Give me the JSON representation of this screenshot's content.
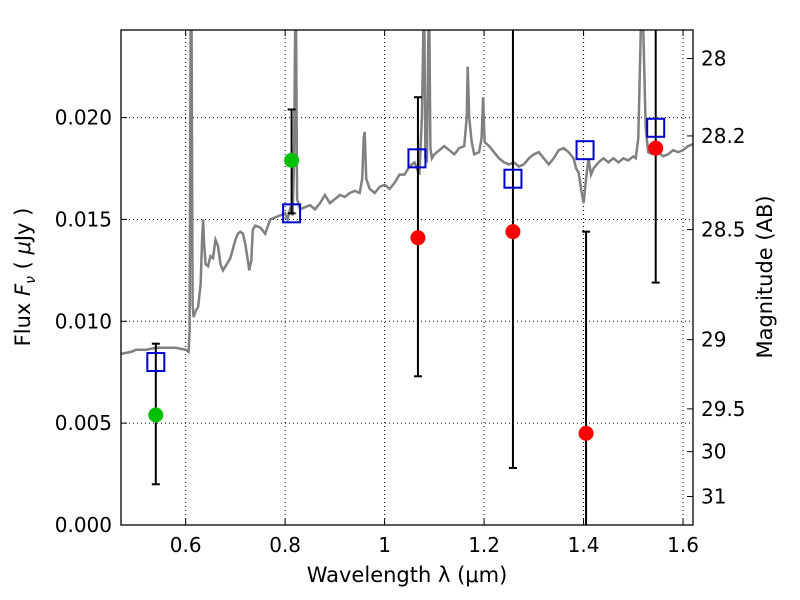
{
  "chart_data": {
    "type": "scatter",
    "xlabel": "Wavelength  λ (μm)",
    "ylabel": {
      "prefix": "Flux ",
      "symbol": "F",
      "subscript": "ν",
      "unit_open": " ( ",
      "unit_mu": "μ",
      "unit_rest": "Jy )"
    },
    "y2label": "Magnitude (AB)",
    "xlim": [
      0.47,
      1.62
    ],
    "ylim": [
      0.0,
      0.0243
    ],
    "grid": true,
    "xticks": [
      0.6,
      0.8,
      1.0,
      1.2,
      1.4,
      1.6
    ],
    "xtick_labels": [
      "0.6",
      "0.8",
      "1",
      "1.2",
      "1.4",
      "1.6"
    ],
    "yticks": [
      0.0,
      0.005,
      0.01,
      0.015,
      0.02
    ],
    "ytick_labels": [
      "0.000",
      "0.005",
      "0.010",
      "0.015",
      "0.020"
    ],
    "y2_ticks": [
      {
        "label": "28",
        "flux": 0.0229
      },
      {
        "label": "28.2",
        "flux": 0.0191
      },
      {
        "label": "28.5",
        "flux": 0.0145
      },
      {
        "label": "29",
        "flux": 0.0091
      },
      {
        "label": "29.5",
        "flux": 0.0057
      },
      {
        "label": "30",
        "flux": 0.0036
      },
      {
        "label": "31",
        "flux": 0.0014
      }
    ],
    "colors": {
      "spectrum": "#808080",
      "red": "#ff0000",
      "green": "#00c000",
      "model": "#0000cc",
      "errorbar": "#000000"
    },
    "spectrum": [
      [
        0.47,
        0.0084
      ],
      [
        0.49,
        0.0085
      ],
      [
        0.5,
        0.0086
      ],
      [
        0.52,
        0.0086
      ],
      [
        0.54,
        0.0087
      ],
      [
        0.56,
        0.0087
      ],
      [
        0.58,
        0.0087
      ],
      [
        0.6,
        0.0086
      ],
      [
        0.606,
        0.0085
      ],
      [
        0.608,
        0.0095
      ],
      [
        0.61,
        0.0243
      ],
      [
        0.612,
        0.0243
      ],
      [
        0.614,
        0.0108
      ],
      [
        0.616,
        0.0102
      ],
      [
        0.62,
        0.0105
      ],
      [
        0.625,
        0.0107
      ],
      [
        0.63,
        0.0118
      ],
      [
        0.633,
        0.014
      ],
      [
        0.635,
        0.015
      ],
      [
        0.637,
        0.0138
      ],
      [
        0.64,
        0.0128
      ],
      [
        0.645,
        0.0127
      ],
      [
        0.65,
        0.0132
      ],
      [
        0.655,
        0.0131
      ],
      [
        0.66,
        0.014
      ],
      [
        0.665,
        0.0137
      ],
      [
        0.67,
        0.0128
      ],
      [
        0.675,
        0.0125
      ],
      [
        0.68,
        0.0127
      ],
      [
        0.69,
        0.0131
      ],
      [
        0.7,
        0.014
      ],
      [
        0.705,
        0.0143
      ],
      [
        0.71,
        0.0144
      ],
      [
        0.715,
        0.0143
      ],
      [
        0.72,
        0.0138
      ],
      [
        0.725,
        0.013
      ],
      [
        0.728,
        0.0125
      ],
      [
        0.732,
        0.013
      ],
      [
        0.735,
        0.0145
      ],
      [
        0.74,
        0.0147
      ],
      [
        0.75,
        0.0146
      ],
      [
        0.76,
        0.0143
      ],
      [
        0.77,
        0.015
      ],
      [
        0.78,
        0.0151
      ],
      [
        0.79,
        0.0152
      ],
      [
        0.8,
        0.0153
      ],
      [
        0.805,
        0.015
      ],
      [
        0.81,
        0.0155
      ],
      [
        0.815,
        0.0152
      ],
      [
        0.818,
        0.018
      ],
      [
        0.82,
        0.0243
      ],
      [
        0.822,
        0.0243
      ],
      [
        0.824,
        0.016
      ],
      [
        0.83,
        0.0155
      ],
      [
        0.84,
        0.0156
      ],
      [
        0.85,
        0.0157
      ],
      [
        0.86,
        0.0155
      ],
      [
        0.87,
        0.0158
      ],
      [
        0.88,
        0.0162
      ],
      [
        0.89,
        0.0158
      ],
      [
        0.9,
        0.016
      ],
      [
        0.91,
        0.0162
      ],
      [
        0.92,
        0.0161
      ],
      [
        0.93,
        0.0163
      ],
      [
        0.94,
        0.0164
      ],
      [
        0.95,
        0.0163
      ],
      [
        0.955,
        0.017
      ],
      [
        0.958,
        0.019
      ],
      [
        0.96,
        0.0193
      ],
      [
        0.963,
        0.017
      ],
      [
        0.97,
        0.0165
      ],
      [
        0.98,
        0.0163
      ],
      [
        0.99,
        0.0166
      ],
      [
        1.0,
        0.0167
      ],
      [
        1.01,
        0.0165
      ],
      [
        1.02,
        0.0168
      ],
      [
        1.03,
        0.0172
      ],
      [
        1.04,
        0.0172
      ],
      [
        1.05,
        0.0176
      ],
      [
        1.06,
        0.0178
      ],
      [
        1.065,
        0.0175
      ],
      [
        1.07,
        0.0172
      ],
      [
        1.075,
        0.02
      ],
      [
        1.078,
        0.0243
      ],
      [
        1.08,
        0.0243
      ],
      [
        1.082,
        0.018
      ],
      [
        1.085,
        0.0178
      ],
      [
        1.088,
        0.0243
      ],
      [
        1.09,
        0.0243
      ],
      [
        1.092,
        0.0185
      ],
      [
        1.095,
        0.018
      ],
      [
        1.1,
        0.0182
      ],
      [
        1.11,
        0.0184
      ],
      [
        1.12,
        0.0186
      ],
      [
        1.13,
        0.0184
      ],
      [
        1.14,
        0.0182
      ],
      [
        1.15,
        0.0185
      ],
      [
        1.16,
        0.0186
      ],
      [
        1.165,
        0.02
      ],
      [
        1.167,
        0.0225
      ],
      [
        1.17,
        0.02
      ],
      [
        1.175,
        0.0188
      ],
      [
        1.18,
        0.0182
      ],
      [
        1.19,
        0.0183
      ],
      [
        1.195,
        0.019
      ],
      [
        1.198,
        0.021
      ],
      [
        1.201,
        0.0188
      ],
      [
        1.21,
        0.0186
      ],
      [
        1.22,
        0.0183
      ],
      [
        1.23,
        0.018
      ],
      [
        1.24,
        0.0178
      ],
      [
        1.25,
        0.0177
      ],
      [
        1.26,
        0.0178
      ],
      [
        1.27,
        0.0176
      ],
      [
        1.28,
        0.0177
      ],
      [
        1.29,
        0.018
      ],
      [
        1.3,
        0.0182
      ],
      [
        1.31,
        0.0183
      ],
      [
        1.32,
        0.018
      ],
      [
        1.33,
        0.0177
      ],
      [
        1.34,
        0.018
      ],
      [
        1.35,
        0.0184
      ],
      [
        1.36,
        0.0185
      ],
      [
        1.37,
        0.0183
      ],
      [
        1.38,
        0.018
      ],
      [
        1.385,
        0.0175
      ],
      [
        1.39,
        0.0173
      ],
      [
        1.395,
        0.0165
      ],
      [
        1.4,
        0.0158
      ],
      [
        1.405,
        0.017
      ],
      [
        1.41,
        0.018
      ],
      [
        1.415,
        0.0172
      ],
      [
        1.42,
        0.0175
      ],
      [
        1.43,
        0.0178
      ],
      [
        1.44,
        0.018
      ],
      [
        1.45,
        0.0178
      ],
      [
        1.46,
        0.018
      ],
      [
        1.47,
        0.0178
      ],
      [
        1.48,
        0.018
      ],
      [
        1.49,
        0.0179
      ],
      [
        1.5,
        0.0181
      ],
      [
        1.505,
        0.018
      ],
      [
        1.51,
        0.019
      ],
      [
        1.515,
        0.0243
      ],
      [
        1.52,
        0.0243
      ],
      [
        1.525,
        0.0195
      ],
      [
        1.53,
        0.0183
      ],
      [
        1.54,
        0.0182
      ],
      [
        1.55,
        0.0183
      ],
      [
        1.56,
        0.0181
      ],
      [
        1.57,
        0.0182
      ],
      [
        1.58,
        0.0184
      ],
      [
        1.59,
        0.0183
      ],
      [
        1.6,
        0.0184
      ],
      [
        1.61,
        0.0186
      ],
      [
        1.62,
        0.0187
      ]
    ],
    "model_points": [
      {
        "x": 0.54,
        "y": 0.008
      },
      {
        "x": 0.813,
        "y": 0.0153
      },
      {
        "x": 1.065,
        "y": 0.018
      },
      {
        "x": 1.258,
        "y": 0.017
      },
      {
        "x": 1.403,
        "y": 0.0184
      },
      {
        "x": 1.545,
        "y": 0.0195
      }
    ],
    "observed_points": [
      {
        "x": 0.54,
        "y": 0.0054,
        "err_low": 0.002,
        "err_high": 0.0089,
        "color": "green"
      },
      {
        "x": 0.813,
        "y": 0.0179,
        "err_low": 0.0153,
        "err_high": 0.0204,
        "color": "green"
      },
      {
        "x": 1.067,
        "y": 0.0141,
        "err_low": 0.0073,
        "err_high": 0.021,
        "color": "red"
      },
      {
        "x": 1.258,
        "y": 0.0144,
        "err_low": 0.0028,
        "err_high": 0.0243,
        "color": "red"
      },
      {
        "x": 1.405,
        "y": 0.0045,
        "err_low": 0.0,
        "err_high": 0.0144,
        "color": "red"
      },
      {
        "x": 1.545,
        "y": 0.0185,
        "err_low": 0.0119,
        "err_high": 0.0243,
        "color": "red"
      }
    ]
  }
}
